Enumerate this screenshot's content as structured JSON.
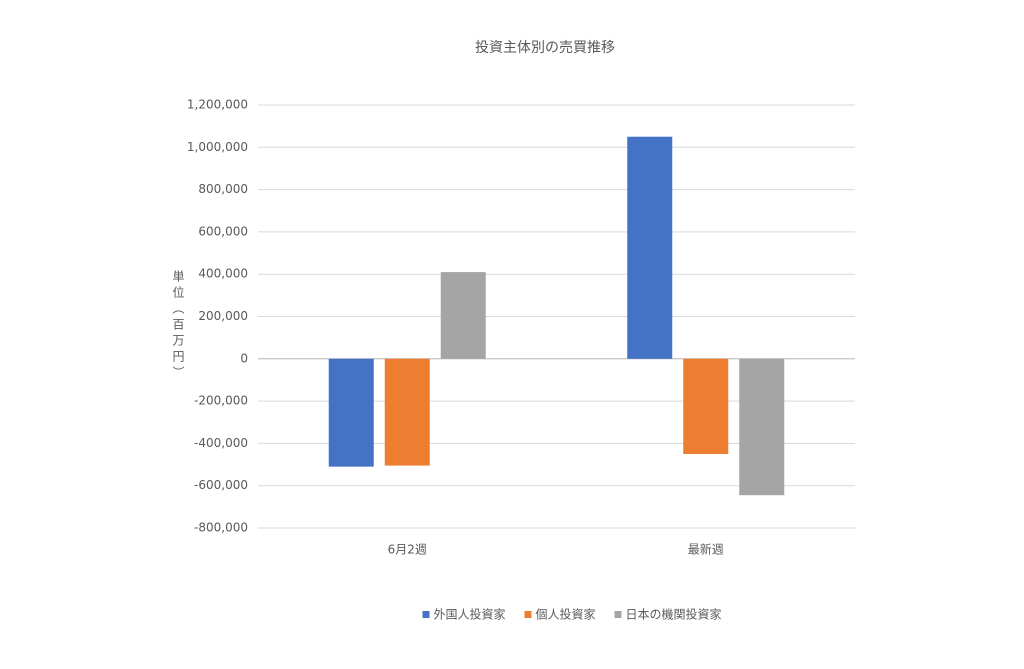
{
  "chart_data": {
    "type": "bar",
    "title": "投資主体別の売買推移",
    "y_label": "単位（百万円）",
    "categories": [
      "6月2週",
      "最新週"
    ],
    "series": [
      {
        "name": "外国人投資家",
        "color": "#4472c4",
        "values": [
          -510000,
          1050000
        ]
      },
      {
        "name": "個人投資家",
        "color": "#ed7d31",
        "values": [
          -505000,
          -450000
        ]
      },
      {
        "name": "日本の機関投資家",
        "color": "#a5a5a5",
        "values": [
          410000,
          -645000
        ]
      }
    ],
    "ylim": [
      -800000,
      1200000
    ],
    "yticks": [
      {
        "value": -800000,
        "label": "-800,000"
      },
      {
        "value": -600000,
        "label": "-600,000"
      },
      {
        "value": -400000,
        "label": "-400,000"
      },
      {
        "value": -200000,
        "label": "-200,000"
      },
      0,
      {
        "value": 200000,
        "label": "200,000"
      },
      {
        "value": 400000,
        "label": "400,000"
      },
      {
        "value": 600000,
        "label": "600,000"
      },
      {
        "value": 800000,
        "label": "800,000"
      },
      {
        "value": 1000000,
        "label": "1,000,000"
      },
      {
        "value": 1200000,
        "label": "1,200,000"
      }
    ],
    "grid": true,
    "legend": "bottom"
  }
}
